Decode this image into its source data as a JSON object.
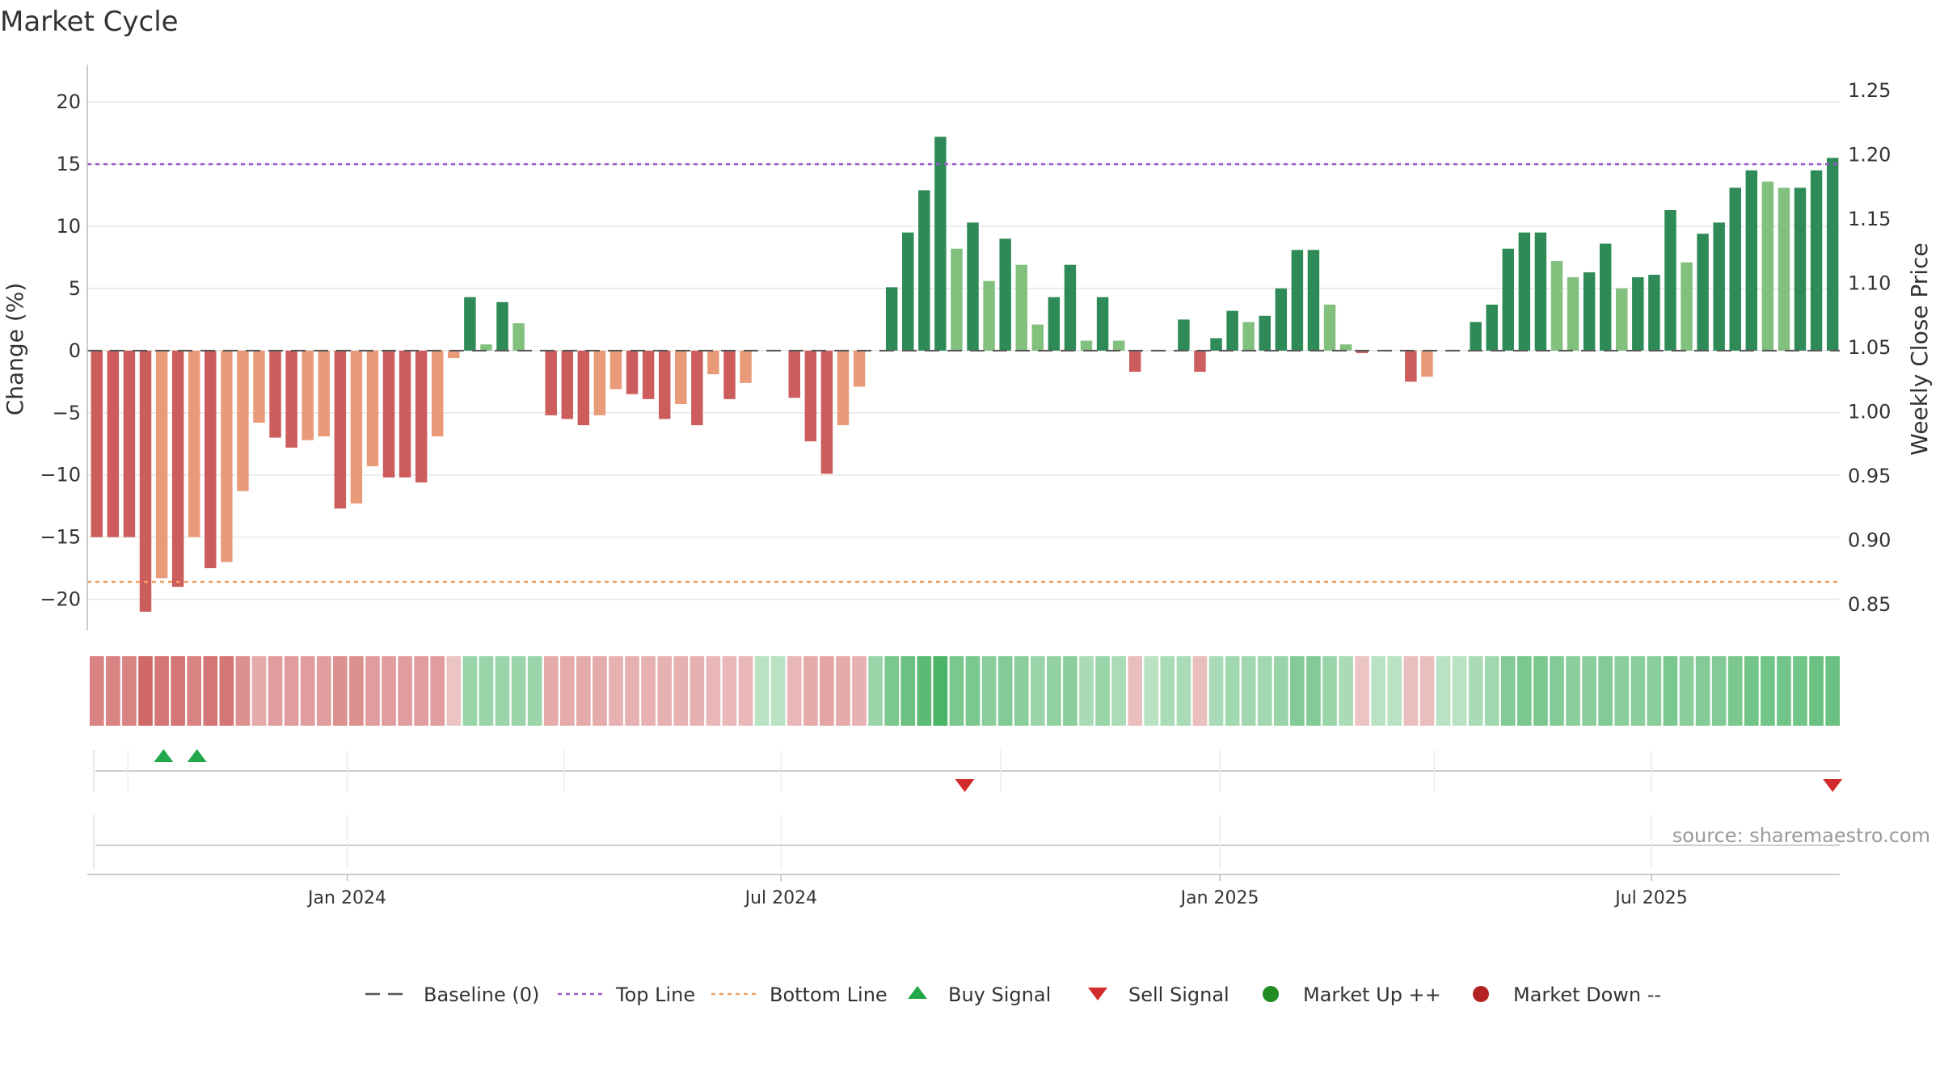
{
  "chart_data": {
    "type": "bar",
    "title": "Market Cycle",
    "ylabel": "Change (%)",
    "ylabel_right": "Weekly Close Price",
    "ylim": [
      -22.5,
      23
    ],
    "ylim_right": [
      0.83,
      1.27
    ],
    "yticks": [
      -20,
      -15,
      -10,
      -5,
      0,
      5,
      10,
      15,
      20
    ],
    "yticks_labels": [
      "−20",
      "−15",
      "−10",
      "−5",
      "0",
      "5",
      "10",
      "15",
      "20"
    ],
    "yticks_right": [
      0.85,
      0.9,
      0.95,
      1.0,
      1.05,
      1.1,
      1.15,
      1.2,
      1.25
    ],
    "yticks_right_labels": [
      "0.85",
      "0.90",
      "0.95",
      "1.00",
      "1.05",
      "1.10",
      "1.15",
      "1.20",
      "1.25"
    ],
    "top_line": 15,
    "bottom_line": -18.6,
    "baseline": 0,
    "x_start": "2023-09-18",
    "x_end": "2025-09-15",
    "x_range": [
      "2023-09-14",
      "2025-09-18"
    ],
    "xticks": [
      {
        "date": "2024-01-01",
        "label": "Jan 2024"
      },
      {
        "date": "2024-07-01",
        "label": "Jul 2024"
      },
      {
        "date": "2025-01-01",
        "label": "Jan 2025"
      },
      {
        "date": "2025-07-01",
        "label": "Jul 2025"
      }
    ],
    "values": [
      -15,
      -15,
      -15,
      -21,
      -18.3,
      -19,
      -15,
      -17.5,
      -17,
      -11.3,
      -5.8,
      -7,
      -7.8,
      -7.2,
      -6.9,
      -12.7,
      -12.3,
      -9.3,
      -10.2,
      -10.2,
      -10.6,
      -6.9,
      -0.6,
      4.3,
      0.5,
      3.9,
      2.2,
      0,
      -5.2,
      -5.5,
      -6,
      -5.2,
      -3.1,
      -3.5,
      -3.9,
      -5.5,
      -4.3,
      -6,
      -1.9,
      -3.9,
      -2.6,
      0,
      0,
      -3.8,
      -7.3,
      -9.9,
      -6,
      -2.9,
      0,
      5.1,
      9.5,
      12.9,
      17.2,
      8.2,
      10.3,
      5.6,
      9,
      6.9,
      2.1,
      4.3,
      6.9,
      0.8,
      4.3,
      0.8,
      -1.7,
      0,
      0,
      2.5,
      -1.7,
      1,
      3.2,
      2.3,
      2.8,
      5,
      8.1,
      8.1,
      3.7,
      0.5,
      -0.2,
      0,
      0,
      -2.5,
      -2.1,
      0,
      0,
      2.3,
      3.7,
      8.2,
      9.5,
      9.5,
      7.2,
      5.9,
      6.3,
      8.6,
      5,
      5.9,
      6.1,
      11.3,
      7.1,
      9.4,
      10.3,
      13.1,
      14.5,
      13.6,
      13.1,
      13.1,
      14.5,
      15.5
    ],
    "bar_color_codes": [
      "r",
      "r",
      "r",
      "r",
      "o",
      "r",
      "o",
      "r",
      "o",
      "o",
      "o",
      "r",
      "r",
      "o",
      "o",
      "r",
      "o",
      "o",
      "r",
      "r",
      "r",
      "o",
      "o",
      "g",
      "l",
      "g",
      "l",
      "n",
      "r",
      "r",
      "r",
      "o",
      "o",
      "r",
      "r",
      "r",
      "o",
      "r",
      "o",
      "r",
      "o",
      "n",
      "n",
      "r",
      "r",
      "r",
      "o",
      "o",
      "n",
      "g",
      "g",
      "g",
      "g",
      "l",
      "g",
      "l",
      "g",
      "l",
      "l",
      "g",
      "g",
      "l",
      "g",
      "l",
      "r",
      "n",
      "n",
      "g",
      "r",
      "g",
      "g",
      "l",
      "g",
      "g",
      "g",
      "g",
      "l",
      "l",
      "r",
      "n",
      "n",
      "r",
      "o",
      "n",
      "n",
      "g",
      "g",
      "g",
      "g",
      "g",
      "l",
      "l",
      "g",
      "g",
      "l",
      "g",
      "g",
      "g",
      "l",
      "g",
      "g",
      "g",
      "g",
      "l",
      "l",
      "g",
      "g",
      "g"
    ],
    "strength_strip": [
      0.7,
      0.7,
      0.7,
      0.9,
      0.8,
      0.8,
      0.7,
      0.8,
      0.8,
      0.6,
      0.4,
      0.5,
      0.5,
      0.5,
      0.5,
      0.6,
      0.6,
      0.5,
      0.5,
      0.5,
      0.5,
      0.5,
      0.2,
      0.4,
      0.4,
      0.4,
      0.4,
      0.4,
      0.4,
      0.4,
      0.4,
      0.4,
      0.35,
      0.35,
      0.35,
      0.35,
      0.35,
      0.35,
      0.3,
      0.3,
      0.3,
      0.2,
      0.2,
      0.3,
      0.4,
      0.45,
      0.4,
      0.35,
      0.4,
      0.6,
      0.7,
      0.8,
      0.9,
      0.6,
      0.6,
      0.5,
      0.55,
      0.5,
      0.4,
      0.45,
      0.5,
      0.3,
      0.4,
      0.3,
      0.25,
      0.2,
      0.3,
      0.3,
      0.25,
      0.3,
      0.35,
      0.35,
      0.35,
      0.4,
      0.55,
      0.55,
      0.4,
      0.3,
      0.2,
      0.2,
      0.2,
      0.25,
      0.25,
      0.2,
      0.2,
      0.3,
      0.35,
      0.55,
      0.6,
      0.6,
      0.55,
      0.5,
      0.5,
      0.55,
      0.5,
      0.5,
      0.5,
      0.6,
      0.5,
      0.55,
      0.55,
      0.6,
      0.65,
      0.65,
      0.65,
      0.65,
      0.7,
      0.7
    ],
    "strength_strip_sign": [
      "-",
      "-",
      "-",
      "-",
      "-",
      "-",
      "-",
      "-",
      "-",
      "-",
      "-",
      "-",
      "-",
      "-",
      "-",
      "-",
      "-",
      "-",
      "-",
      "-",
      "-",
      "-",
      "-",
      "+",
      "+",
      "+",
      "+",
      "+",
      "-",
      "-",
      "-",
      "-",
      "-",
      "-",
      "-",
      "-",
      "-",
      "-",
      "-",
      "-",
      "-",
      "+",
      "+",
      "-",
      "-",
      "-",
      "-",
      "-",
      "+",
      "+",
      "+",
      "+",
      "+",
      "+",
      "+",
      "+",
      "+",
      "+",
      "+",
      "+",
      "+",
      "+",
      "+",
      "+",
      "-",
      "+",
      "+",
      "+",
      "-",
      "+",
      "+",
      "+",
      "+",
      "+",
      "+",
      "+",
      "+",
      "+",
      "-",
      "+",
      "+",
      "-",
      "-",
      "+",
      "+",
      "+",
      "+",
      "+",
      "+",
      "+",
      "+",
      "+",
      "+",
      "+",
      "+",
      "+",
      "+",
      "+",
      "+",
      "+",
      "+",
      "+",
      "+",
      "+",
      "+",
      "+",
      "+",
      "+"
    ],
    "buy_signals": [
      "2023-10-16",
      "2023-10-30"
    ],
    "sell_signals": [
      "2024-09-16",
      "2025-09-15"
    ],
    "legend": [
      "Baseline (0)",
      "Top Line",
      "Bottom Line",
      "Buy Signal",
      "Sell Signal",
      "Market Up ++",
      "Market Down --"
    ],
    "legend_position": "bottom",
    "grid": true
  },
  "colors": {
    "bar_r": "#cd5c5c",
    "bar_o": "#e99a78",
    "bar_g": "#2e8b57",
    "bar_l": "#82c07e",
    "top_line": "#9b59d0",
    "bottom_line": "#f0a060",
    "buy": "#22a84a",
    "sell": "#d22b2b",
    "market_up": "#228b22",
    "market_down": "#b22222",
    "strip_neg": "#cd5c5c",
    "strip_pos": "#3cae5a"
  },
  "source": "source: sharemaestro.com"
}
